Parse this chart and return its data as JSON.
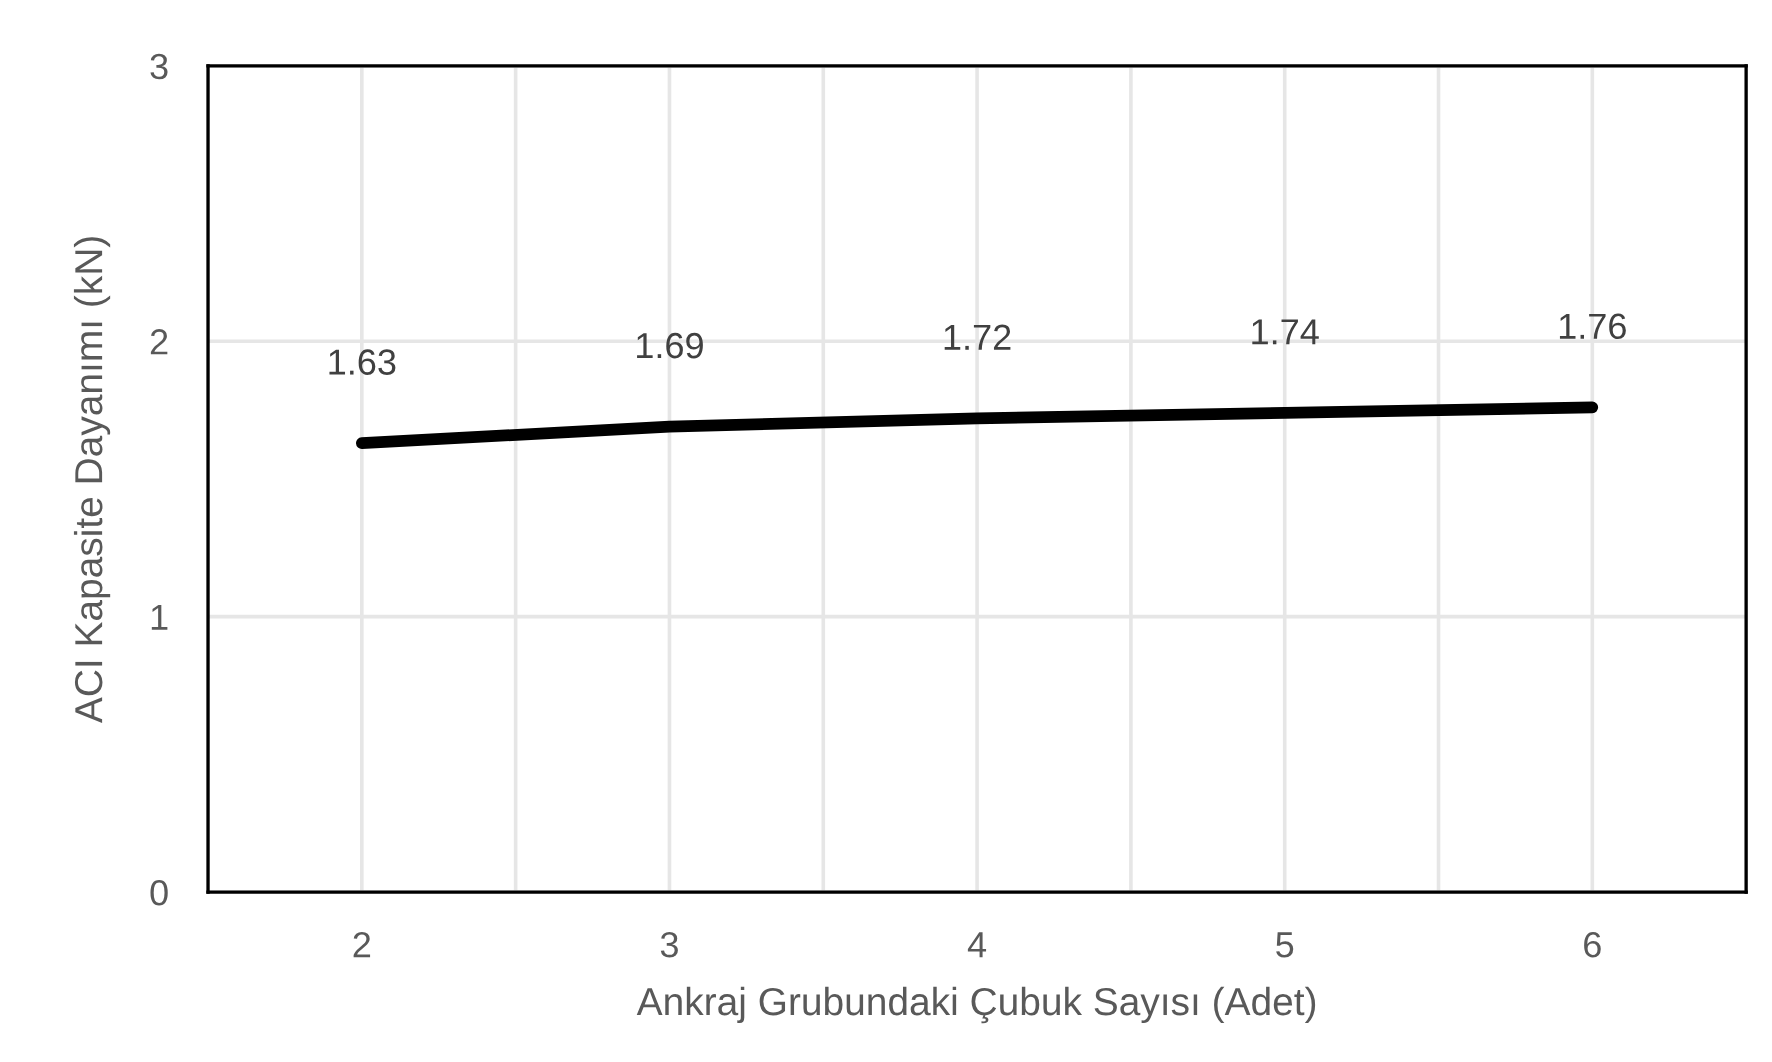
{
  "chart_data": {
    "type": "line",
    "xlabel": "Ankraj Grubundaki Çubuk Sayısı (Adet)",
    "ylabel": "ACI Kapasite Dayanımı (kN)",
    "x": [
      2,
      3,
      4,
      5,
      6
    ],
    "series": [
      {
        "color": "#000000",
        "values": [
          1.63,
          1.69,
          1.72,
          1.74,
          1.76
        ]
      }
    ],
    "xlim": [
      1.5,
      6.5
    ],
    "xticks": [
      2,
      {
        "value": 2.5,
        "label": null
      },
      3,
      {
        "value": 3.5,
        "label": null
      },
      4,
      {
        "value": 4.5,
        "label": null
      },
      5,
      {
        "value": 5.5,
        "label": null
      },
      6
    ],
    "ylim": [
      0,
      3
    ],
    "yticks": [
      0,
      1,
      2,
      3
    ],
    "grid": true,
    "data_labels": true,
    "marker": "none",
    "line_style": "solid"
  }
}
